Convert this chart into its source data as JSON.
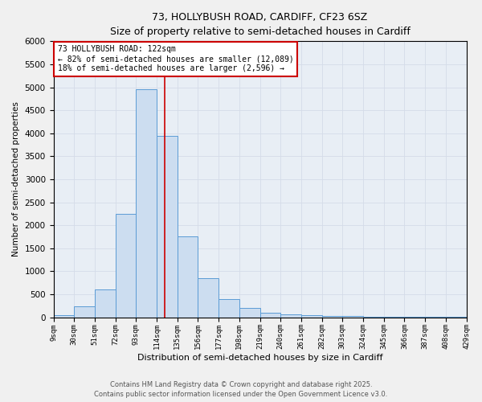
{
  "title_line1": "73, HOLLYBUSH ROAD, CARDIFF, CF23 6SZ",
  "title_line2": "Size of property relative to semi-detached houses in Cardiff",
  "xlabel": "Distribution of semi-detached houses by size in Cardiff",
  "ylabel": "Number of semi-detached properties",
  "bin_labels": [
    "9sqm",
    "30sqm",
    "51sqm",
    "72sqm",
    "93sqm",
    "114sqm",
    "135sqm",
    "156sqm",
    "177sqm",
    "198sqm",
    "219sqm",
    "240sqm",
    "261sqm",
    "282sqm",
    "303sqm",
    "324sqm",
    "345sqm",
    "366sqm",
    "387sqm",
    "408sqm",
    "429sqm"
  ],
  "bin_edges": [
    9,
    30,
    51,
    72,
    93,
    114,
    135,
    156,
    177,
    198,
    219,
    240,
    261,
    282,
    303,
    324,
    345,
    366,
    387,
    408,
    429
  ],
  "bar_heights": [
    50,
    230,
    600,
    2250,
    4950,
    3950,
    1750,
    850,
    400,
    200,
    100,
    70,
    50,
    30,
    20,
    10,
    5,
    5,
    5,
    5
  ],
  "bar_color": "#ccddf0",
  "bar_edge_color": "#5b9bd5",
  "property_size": 122,
  "vline_color": "#cc0000",
  "ylim": [
    0,
    6000
  ],
  "yticks": [
    0,
    500,
    1000,
    1500,
    2000,
    2500,
    3000,
    3500,
    4000,
    4500,
    5000,
    5500,
    6000
  ],
  "annotation_line1": "73 HOLLYBUSH ROAD: 122sqm",
  "annotation_line2": "← 82% of semi-detached houses are smaller (12,089)",
  "annotation_line3": "18% of semi-detached houses are larger (2,596) →",
  "annotation_box_color": "#ffffff",
  "annotation_box_edge": "#cc0000",
  "footer_line1": "Contains HM Land Registry data © Crown copyright and database right 2025.",
  "footer_line2": "Contains public sector information licensed under the Open Government Licence v3.0.",
  "grid_color": "#d4dce8",
  "bg_color": "#e8eef5",
  "fig_bg_color": "#f0f0f0"
}
